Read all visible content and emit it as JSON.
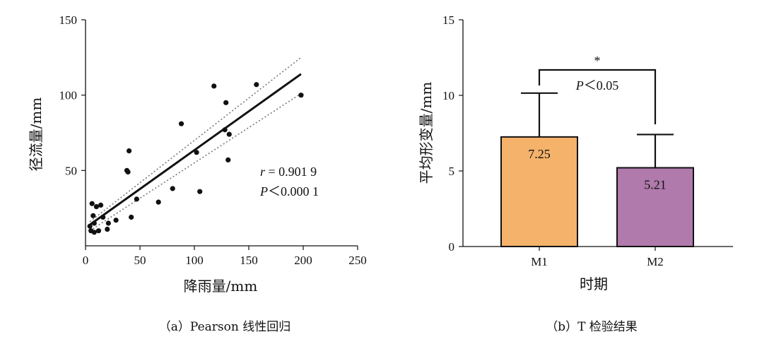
{
  "panels": {
    "a": {
      "caption": "（a）Pearson 线性回归",
      "annotation_r": "r = 0.901 9",
      "annotation_p": "P＜0.000 1"
    },
    "b": {
      "caption": "（b）T 检验结果",
      "sig_star": "*",
      "sig_p": "P＜0.05"
    }
  },
  "chart_data": [
    {
      "type": "scatter",
      "title": "",
      "xlabel": "降雨量/mm",
      "ylabel": "径流量/mm",
      "xlim": [
        0,
        250
      ],
      "ylim": [
        0,
        150
      ],
      "xticks": [
        0,
        50,
        100,
        150,
        200,
        250
      ],
      "yticks": [
        50,
        100,
        150
      ],
      "grid": false,
      "points": [
        {
          "x": 4,
          "y": 13
        },
        {
          "x": 5,
          "y": 10
        },
        {
          "x": 6,
          "y": 28
        },
        {
          "x": 7,
          "y": 20
        },
        {
          "x": 8,
          "y": 9
        },
        {
          "x": 8,
          "y": 15
        },
        {
          "x": 10,
          "y": 26
        },
        {
          "x": 12,
          "y": 10
        },
        {
          "x": 14,
          "y": 27
        },
        {
          "x": 16,
          "y": 19
        },
        {
          "x": 20,
          "y": 11
        },
        {
          "x": 21,
          "y": 15
        },
        {
          "x": 28,
          "y": 17
        },
        {
          "x": 38,
          "y": 50
        },
        {
          "x": 39,
          "y": 49
        },
        {
          "x": 40,
          "y": 63
        },
        {
          "x": 42,
          "y": 19
        },
        {
          "x": 47,
          "y": 31
        },
        {
          "x": 67,
          "y": 29
        },
        {
          "x": 80,
          "y": 38
        },
        {
          "x": 88,
          "y": 81
        },
        {
          "x": 102,
          "y": 62
        },
        {
          "x": 105,
          "y": 36
        },
        {
          "x": 118,
          "y": 106
        },
        {
          "x": 128,
          "y": 77
        },
        {
          "x": 129,
          "y": 95
        },
        {
          "x": 131,
          "y": 57
        },
        {
          "x": 132,
          "y": 74
        },
        {
          "x": 157,
          "y": 107
        },
        {
          "x": 198,
          "y": 100
        }
      ],
      "fit_line": {
        "x": [
          4,
          198
        ],
        "y": [
          14,
          114
        ]
      },
      "ci_upper": {
        "x": [
          4,
          198
        ],
        "y": [
          16,
          125
        ]
      },
      "ci_lower": {
        "x": [
          4,
          198
        ],
        "y": [
          10,
          101
        ]
      },
      "annotations": [
        "r = 0.901 9",
        "P＜0.000 1"
      ]
    },
    {
      "type": "bar",
      "title": "",
      "xlabel": "时期",
      "ylabel": "平均形变量/mm",
      "categories": [
        "M1",
        "M2"
      ],
      "values": [
        7.25,
        5.21
      ],
      "errors": [
        2.9,
        2.2
      ],
      "value_labels": [
        "7.25",
        "5.21"
      ],
      "colors": [
        "#f5b26b",
        "#b07aac"
      ],
      "ylim": [
        0,
        15
      ],
      "yticks": [
        0,
        5,
        10,
        15
      ],
      "grid": false,
      "significance": {
        "between": [
          "M1",
          "M2"
        ],
        "marker": "*",
        "text": "P＜0.05"
      }
    }
  ]
}
